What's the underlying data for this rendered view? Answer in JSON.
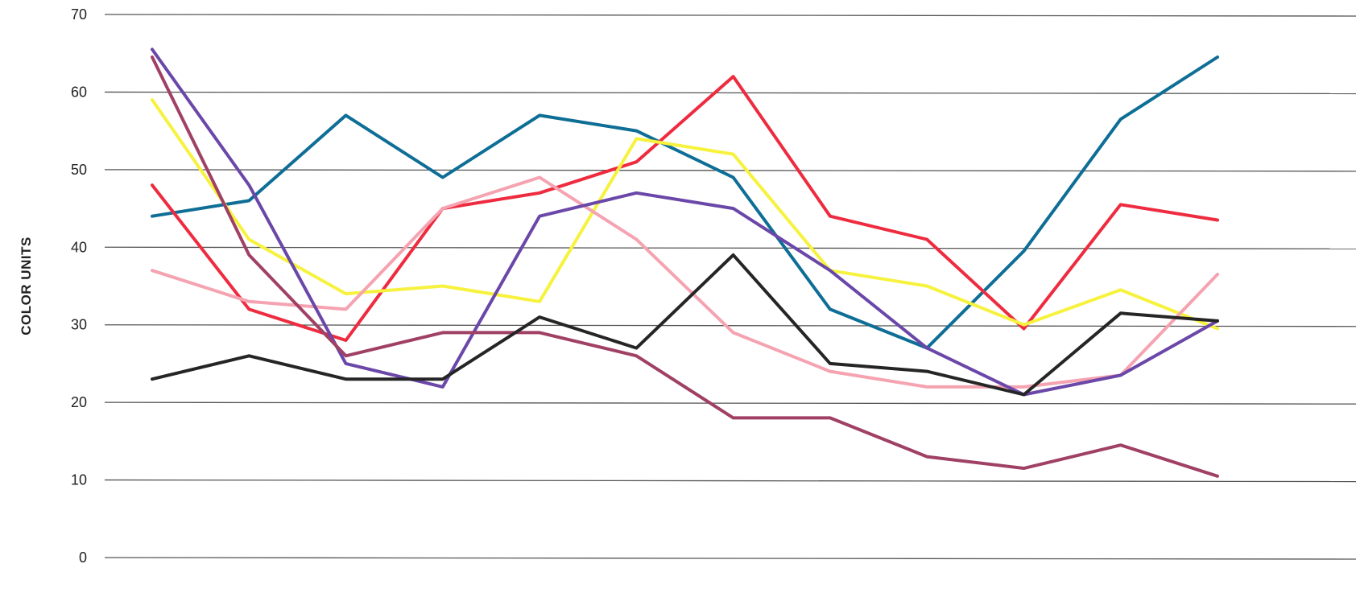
{
  "chart_data": {
    "type": "line",
    "title": "",
    "xlabel": "",
    "ylabel": "COLOR UNITS",
    "ylim": [
      0,
      70
    ],
    "yticks": [
      0,
      10,
      20,
      30,
      40,
      50,
      60,
      70
    ],
    "x": [
      1,
      2,
      3,
      4,
      5,
      6,
      7,
      8,
      9,
      10,
      11,
      12
    ],
    "grid": "horizontal",
    "legend": "none",
    "series": [
      {
        "color": "#0e6e96",
        "values": [
          44,
          46,
          57,
          49,
          57,
          55,
          49,
          32,
          27,
          39.5,
          56.5,
          64.5
        ]
      },
      {
        "color": "#ee2b3f",
        "values": [
          48,
          32,
          28,
          45,
          47,
          51,
          62,
          44,
          41,
          29.5,
          45.5,
          43.5
        ]
      },
      {
        "color": "#f6f23d",
        "values": [
          59,
          41,
          34,
          35,
          33,
          54,
          52,
          37,
          35,
          30,
          34.5,
          29.5
        ]
      },
      {
        "color": "#f5a3b1",
        "values": [
          37,
          33,
          32,
          45,
          49,
          41,
          29,
          24,
          22,
          22,
          23.5,
          36.5
        ]
      },
      {
        "color": "#6a47a8",
        "values": [
          65.5,
          48,
          25,
          22,
          44,
          47,
          45,
          37,
          27,
          21,
          23.5,
          30.5
        ]
      },
      {
        "color": "#a04065",
        "values": [
          64.5,
          39,
          26,
          29,
          29,
          26,
          18,
          18,
          13,
          11.5,
          14.5,
          10.5
        ]
      },
      {
        "color": "#252525",
        "values": [
          23,
          26,
          23,
          23,
          31,
          27,
          39,
          25,
          24,
          21,
          31.5,
          30.5
        ]
      }
    ]
  }
}
